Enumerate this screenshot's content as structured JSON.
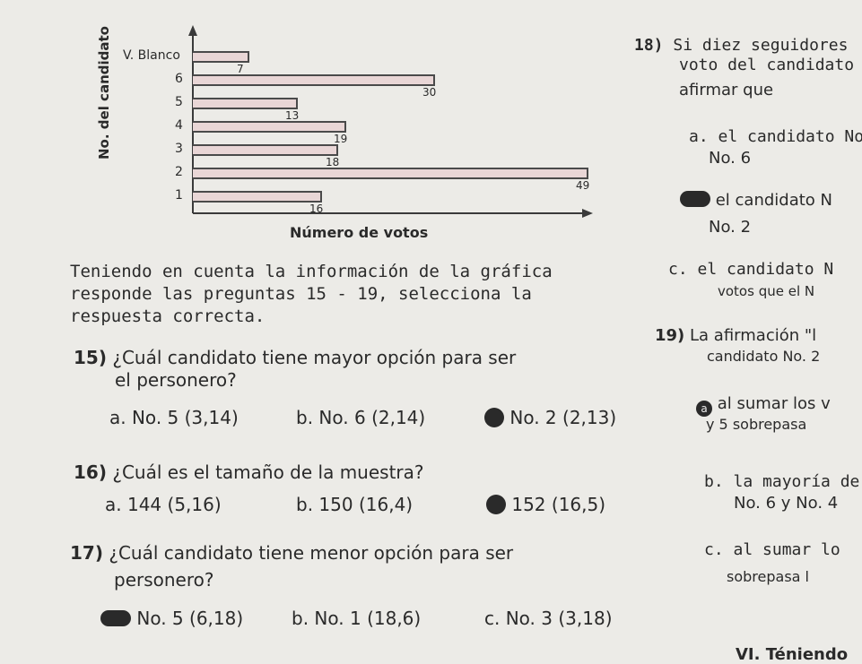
{
  "chart_data": {
    "type": "bar",
    "orientation": "horizontal",
    "categories": [
      "V. Blanco",
      "6",
      "5",
      "4",
      "3",
      "2",
      "1"
    ],
    "values": [
      7,
      30,
      13,
      19,
      18,
      49,
      16
    ],
    "ylabel": "No. del candidato",
    "xlabel": "Número de votos",
    "xlim": [
      0,
      50
    ],
    "grid": false
  },
  "intro": {
    "line1": "Teniendo en cuenta la información de la gráfica",
    "line2": "responde las preguntas 15 - 19, selecciona la",
    "line3": "respuesta correcta."
  },
  "q15": {
    "number": "15)",
    "text1": "¿Cuál candidato tiene mayor opción para ser",
    "text2": "el personero?",
    "a": "a. No. 5",
    "a_note": "(3,14)",
    "b": "b. No. 6",
    "b_note": "(2,14)",
    "c": "No. 2",
    "c_note": "(2,13)"
  },
  "q16": {
    "number": "16)",
    "text": "¿Cuál es el tamaño de la muestra?",
    "a": "a. 144",
    "a_note": "(5,16)",
    "b": "b. 150",
    "b_note": "(16,4)",
    "c": "152",
    "c_note": "(16,5)"
  },
  "q17": {
    "number": "17)",
    "text1": "¿Cuál candidato tiene menor opción para ser",
    "text2": "personero?",
    "a": "No. 5",
    "a_note": "(6,18)",
    "b": "b. No. 1",
    "b_note": "(18,6)",
    "c": "c. No. 3",
    "c_note": "(3,18)"
  },
  "q18": {
    "number": "18)",
    "text1": "Si diez seguidores",
    "text2": "voto del candidato",
    "text3": "afirmar que",
    "a1": "a. el candidato No",
    "a2": "No. 6",
    "b1": "el candidato N",
    "b2": "No. 2",
    "c1": "c. el candidato N",
    "c2": "votos que el N"
  },
  "q19": {
    "number": "19)",
    "text1": "La afirmación \"l",
    "text2": "candidato No. 2",
    "a_letter": "a",
    "a1": "al sumar los v",
    "a2": "y 5 sobrepasa",
    "b1": "b. la mayoría de",
    "b2": "No. 6 y No. 4",
    "c1": "c. al sumar lo",
    "c2": "sobrepasa l"
  },
  "footer": {
    "section": "VI. Téniendo"
  }
}
